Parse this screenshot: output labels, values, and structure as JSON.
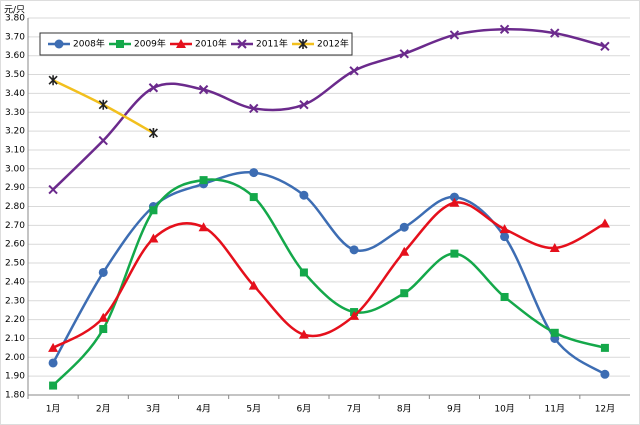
{
  "chart_data": {
    "type": "line",
    "y_label": "元/只",
    "categories": [
      "1月",
      "2月",
      "3月",
      "4月",
      "5月",
      "6月",
      "7月",
      "8月",
      "9月",
      "10月",
      "11月",
      "12月"
    ],
    "series": [
      {
        "name": "2008年",
        "color": "#3d6db3",
        "marker": "circle",
        "values": [
          1.97,
          2.45,
          2.8,
          2.92,
          2.98,
          2.86,
          2.57,
          2.69,
          2.85,
          2.64,
          2.1,
          1.91
        ]
      },
      {
        "name": "2009年",
        "color": "#14a84a",
        "marker": "square",
        "values": [
          1.85,
          2.15,
          2.78,
          2.94,
          2.85,
          2.45,
          2.24,
          2.34,
          2.55,
          2.32,
          2.13,
          2.05
        ]
      },
      {
        "name": "2010年",
        "color": "#e5101c",
        "marker": "triangle",
        "values": [
          2.05,
          2.21,
          2.63,
          2.69,
          2.38,
          2.12,
          2.22,
          2.56,
          2.82,
          2.68,
          2.58,
          2.71
        ]
      },
      {
        "name": "2011年",
        "color": "#6b2a8c",
        "marker": "x",
        "values": [
          2.89,
          3.15,
          3.43,
          3.42,
          3.32,
          3.34,
          3.52,
          3.61,
          3.71,
          3.74,
          3.72,
          3.65
        ]
      },
      {
        "name": "2012年",
        "color": "#f2c01e",
        "marker": "star",
        "values": [
          3.47,
          3.34,
          3.19,
          null,
          null,
          null,
          null,
          null,
          null,
          null,
          null,
          null
        ]
      }
    ],
    "ylim": [
      1.8,
      3.8
    ],
    "yticks": [
      {
        "value": 1.8,
        "label": "1.80"
      },
      {
        "value": 1.9,
        "label": "1.90"
      },
      {
        "value": 2.0,
        "label": "2.00"
      },
      {
        "value": 2.1,
        "label": "2.10"
      },
      {
        "value": 2.2,
        "label": "2.20"
      },
      {
        "value": 2.3,
        "label": "2.30"
      },
      {
        "value": 2.4,
        "label": "2.40"
      },
      {
        "value": 2.5,
        "label": "2.50"
      },
      {
        "value": 2.6,
        "label": "2.60"
      },
      {
        "value": 2.7,
        "label": "2.70"
      },
      {
        "value": 2.8,
        "label": "2.80"
      },
      {
        "value": 2.9,
        "label": "2.90"
      },
      {
        "value": 3.0,
        "label": "3.00"
      },
      {
        "value": 3.1,
        "label": "3.10"
      },
      {
        "value": 3.2,
        "label": "3.20"
      },
      {
        "value": 3.3,
        "label": "3.30"
      },
      {
        "value": 3.4,
        "label": "3.40"
      },
      {
        "value": 3.5,
        "label": "3.50"
      },
      {
        "value": 3.6,
        "label": "3.60"
      },
      {
        "value": 3.7,
        "label": "3.70"
      },
      {
        "value": 3.8,
        "label": "3.80"
      }
    ],
    "grid": true,
    "smooth": true,
    "legend": "top-left"
  }
}
